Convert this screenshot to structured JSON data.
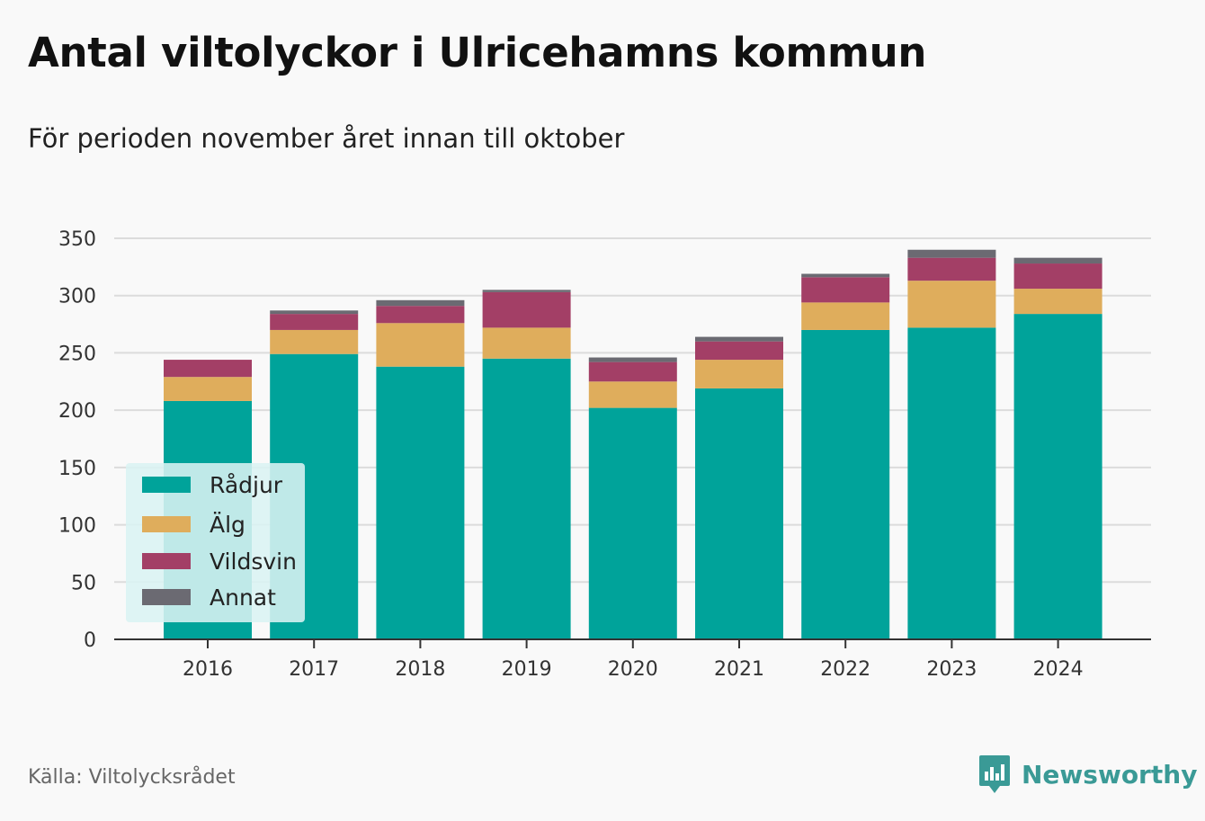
{
  "header": {
    "title": "Antal viltolyckor i Ulricehamns kommun",
    "subtitle": "För perioden november året innan till oktober"
  },
  "footer": {
    "source": "Källa: Viltolycksrådet",
    "brand": "Newsworthy"
  },
  "icons": {
    "brand_logo": "newsworthy-logo-icon"
  },
  "chart_data": {
    "type": "bar",
    "stacked": true,
    "categories": [
      "2016",
      "2017",
      "2018",
      "2019",
      "2020",
      "2021",
      "2022",
      "2023",
      "2024"
    ],
    "series": [
      {
        "name": "Rådjur",
        "color": "#00a39a",
        "values": [
          208,
          249,
          238,
          245,
          202,
          219,
          270,
          272,
          284
        ]
      },
      {
        "name": "Älg",
        "color": "#dfad5c",
        "values": [
          21,
          21,
          38,
          27,
          23,
          25,
          24,
          41,
          22
        ]
      },
      {
        "name": "Vildsvin",
        "color": "#a33f66",
        "values": [
          15,
          14,
          15,
          31,
          17,
          16,
          22,
          20,
          22
        ]
      },
      {
        "name": "Annat",
        "color": "#6b6a72",
        "values": [
          0,
          3,
          5,
          2,
          4,
          4,
          3,
          7,
          5
        ]
      }
    ],
    "yticks": [
      0,
      50,
      100,
      150,
      200,
      250,
      300,
      350
    ],
    "ylim": [
      0,
      350
    ],
    "grid": true,
    "legend_position": "bottom-left"
  }
}
